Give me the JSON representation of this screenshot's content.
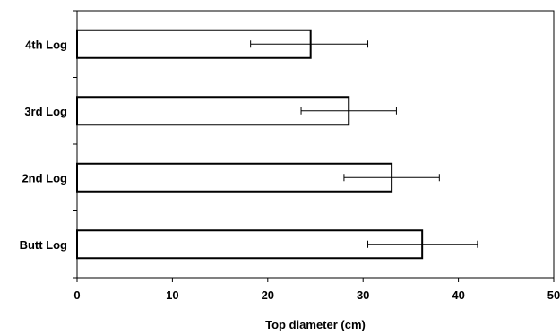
{
  "chart_data": {
    "type": "bar",
    "orientation": "horizontal",
    "categories": [
      "Butt Log",
      "2nd Log",
      "3rd Log",
      "4th Log"
    ],
    "values": [
      36.2,
      33.0,
      28.5,
      24.5
    ],
    "error_low": [
      30.5,
      28.0,
      23.5,
      18.2
    ],
    "error_high": [
      42.0,
      38.0,
      33.5,
      30.5
    ],
    "xlabel": "Top diameter (cm)",
    "ylabel": "",
    "title": "",
    "xlim": [
      0,
      50
    ],
    "xticks": [
      0,
      10,
      20,
      30,
      40,
      50
    ],
    "grid": false,
    "legend": "none",
    "bar_fill": "#ffffff",
    "bar_stroke": "#000000"
  }
}
